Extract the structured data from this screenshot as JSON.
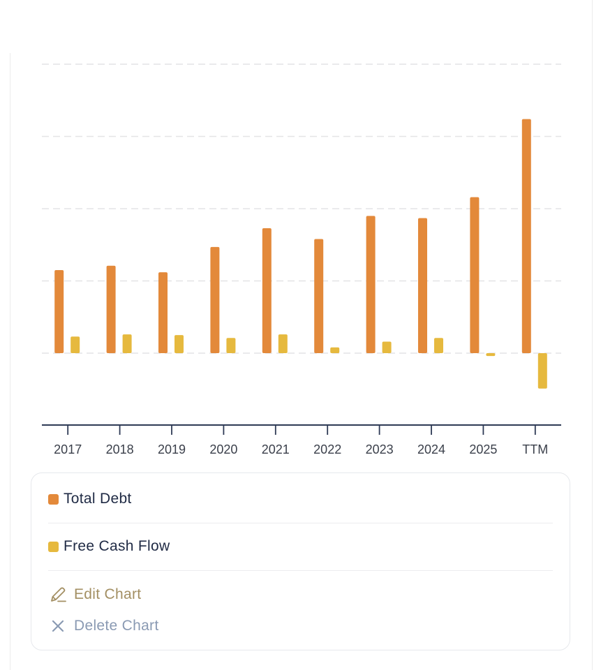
{
  "chart_data": {
    "type": "bar",
    "categories": [
      "2017",
      "2018",
      "2019",
      "2020",
      "2021",
      "2022",
      "2023",
      "2024",
      "2025",
      "TTM"
    ],
    "series": [
      {
        "name": "Total Debt",
        "color": "#e3893a",
        "values": [
          1.15,
          1.21,
          1.12,
          1.47,
          1.73,
          1.58,
          1.9,
          1.87,
          2.16,
          3.24
        ]
      },
      {
        "name": "Free Cash Flow",
        "color": "#e6b93e",
        "values": [
          0.23,
          0.26,
          0.25,
          0.21,
          0.26,
          0.08,
          0.16,
          0.21,
          -0.04,
          -0.49
        ]
      }
    ],
    "ylim": [
      -1,
      4
    ],
    "gridlines": [
      0,
      1,
      2,
      3,
      4
    ],
    "grid": true,
    "legend_position": "bottom"
  },
  "legend": {
    "items": [
      {
        "label": "Total Debt",
        "color": "#e3893a"
      },
      {
        "label": "Free Cash Flow",
        "color": "#e6b93e"
      }
    ]
  },
  "actions": {
    "edit_label": "Edit Chart",
    "delete_label": "Delete Chart",
    "edit_icon": "pencil-icon",
    "delete_icon": "close-icon"
  }
}
